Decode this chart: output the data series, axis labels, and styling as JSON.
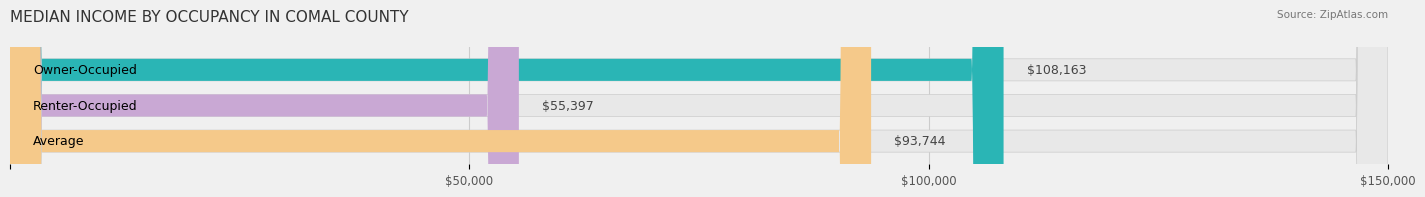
{
  "title": "MEDIAN INCOME BY OCCUPANCY IN COMAL COUNTY",
  "source": "Source: ZipAtlas.com",
  "categories": [
    "Owner-Occupied",
    "Renter-Occupied",
    "Average"
  ],
  "values": [
    108163,
    55397,
    93744
  ],
  "bar_colors": [
    "#2ab5b5",
    "#c9a8d4",
    "#f5c98a"
  ],
  "value_labels": [
    "$108,163",
    "$55,397",
    "$93,744"
  ],
  "xlim": [
    0,
    150000
  ],
  "xticks": [
    0,
    50000,
    100000,
    150000
  ],
  "xtick_labels": [
    "",
    "$50,000",
    "$100,000",
    "$150,000"
  ],
  "background_color": "#f0f0f0",
  "bar_background_color": "#e8e8e8",
  "title_fontsize": 11,
  "label_fontsize": 9,
  "value_fontsize": 9,
  "tick_fontsize": 8.5
}
